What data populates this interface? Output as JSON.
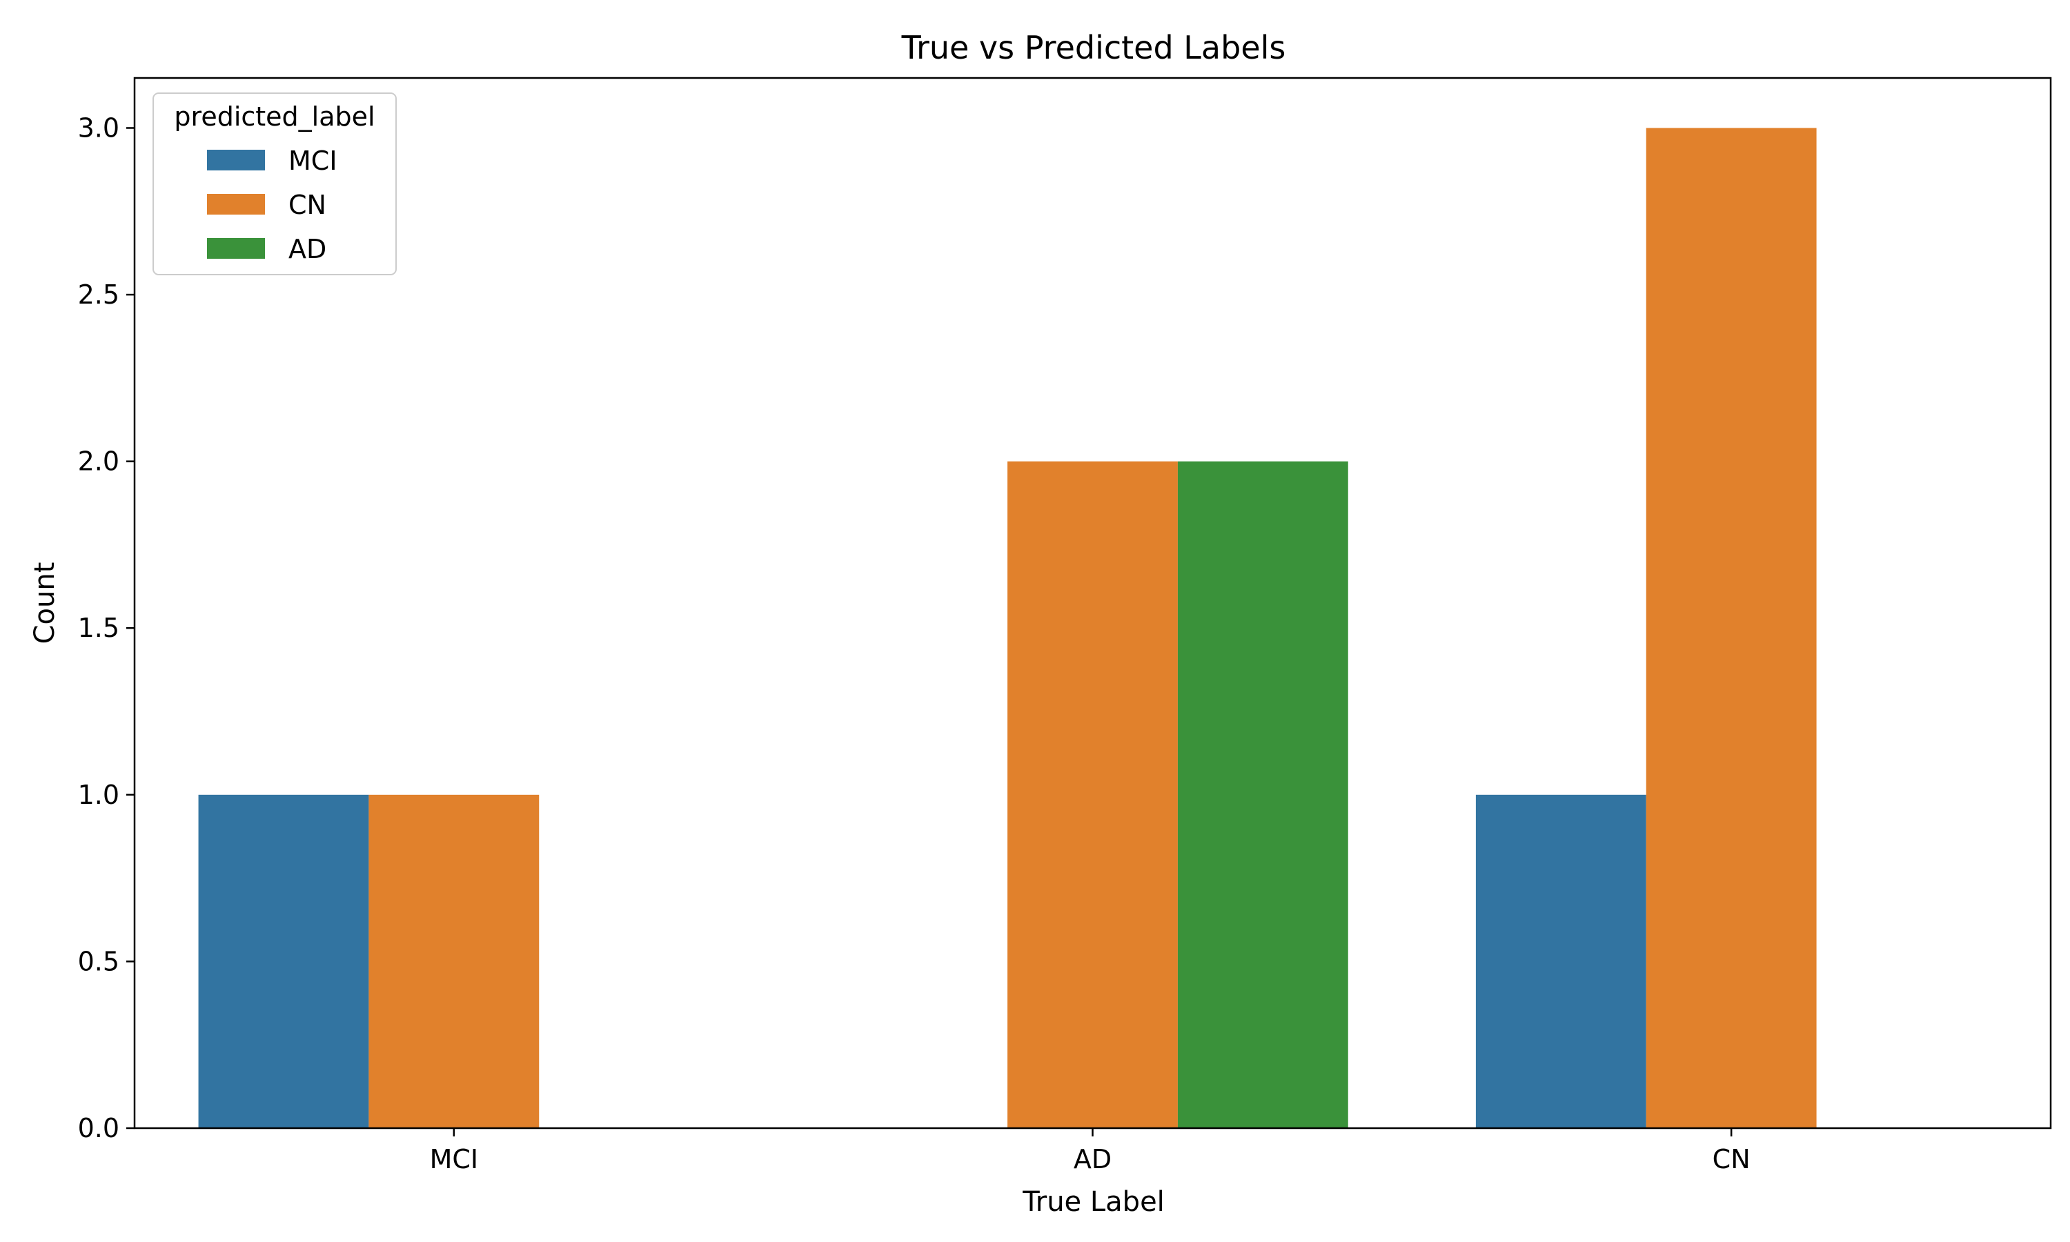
{
  "chart_data": {
    "type": "bar",
    "title": "True vs Predicted Labels",
    "xlabel": "True Label",
    "ylabel": "Count",
    "categories": [
      "MCI",
      "AD",
      "CN"
    ],
    "ylim": [
      0,
      3.15
    ],
    "yticks": [
      0.0,
      0.5,
      1.0,
      1.5,
      2.0,
      2.5,
      3.0
    ],
    "ytick_labels": [
      "0.0",
      "0.5",
      "1.0",
      "1.5",
      "2.0",
      "2.5",
      "3.0"
    ],
    "grid": false,
    "legend": {
      "title": "predicted_label",
      "placement": "upper-left"
    },
    "series": [
      {
        "name": "MCI",
        "color": "#3274a1",
        "values": [
          1,
          0,
          1
        ]
      },
      {
        "name": "CN",
        "color": "#e1812c",
        "values": [
          1,
          2,
          3
        ]
      },
      {
        "name": "AD",
        "color": "#3a923a",
        "values": [
          0,
          2,
          0
        ]
      }
    ]
  }
}
